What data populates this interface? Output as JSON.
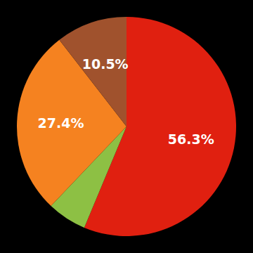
{
  "chart_data": {
    "type": "pie",
    "values": [
      56.3,
      5.8,
      27.4,
      10.5
    ],
    "value_labels": [
      "56.3%",
      null,
      "27.4%",
      "10.5%"
    ],
    "colors": [
      "#e02010",
      "#8dc044",
      "#f58220",
      "#a0522d"
    ],
    "data_labels": true
  }
}
